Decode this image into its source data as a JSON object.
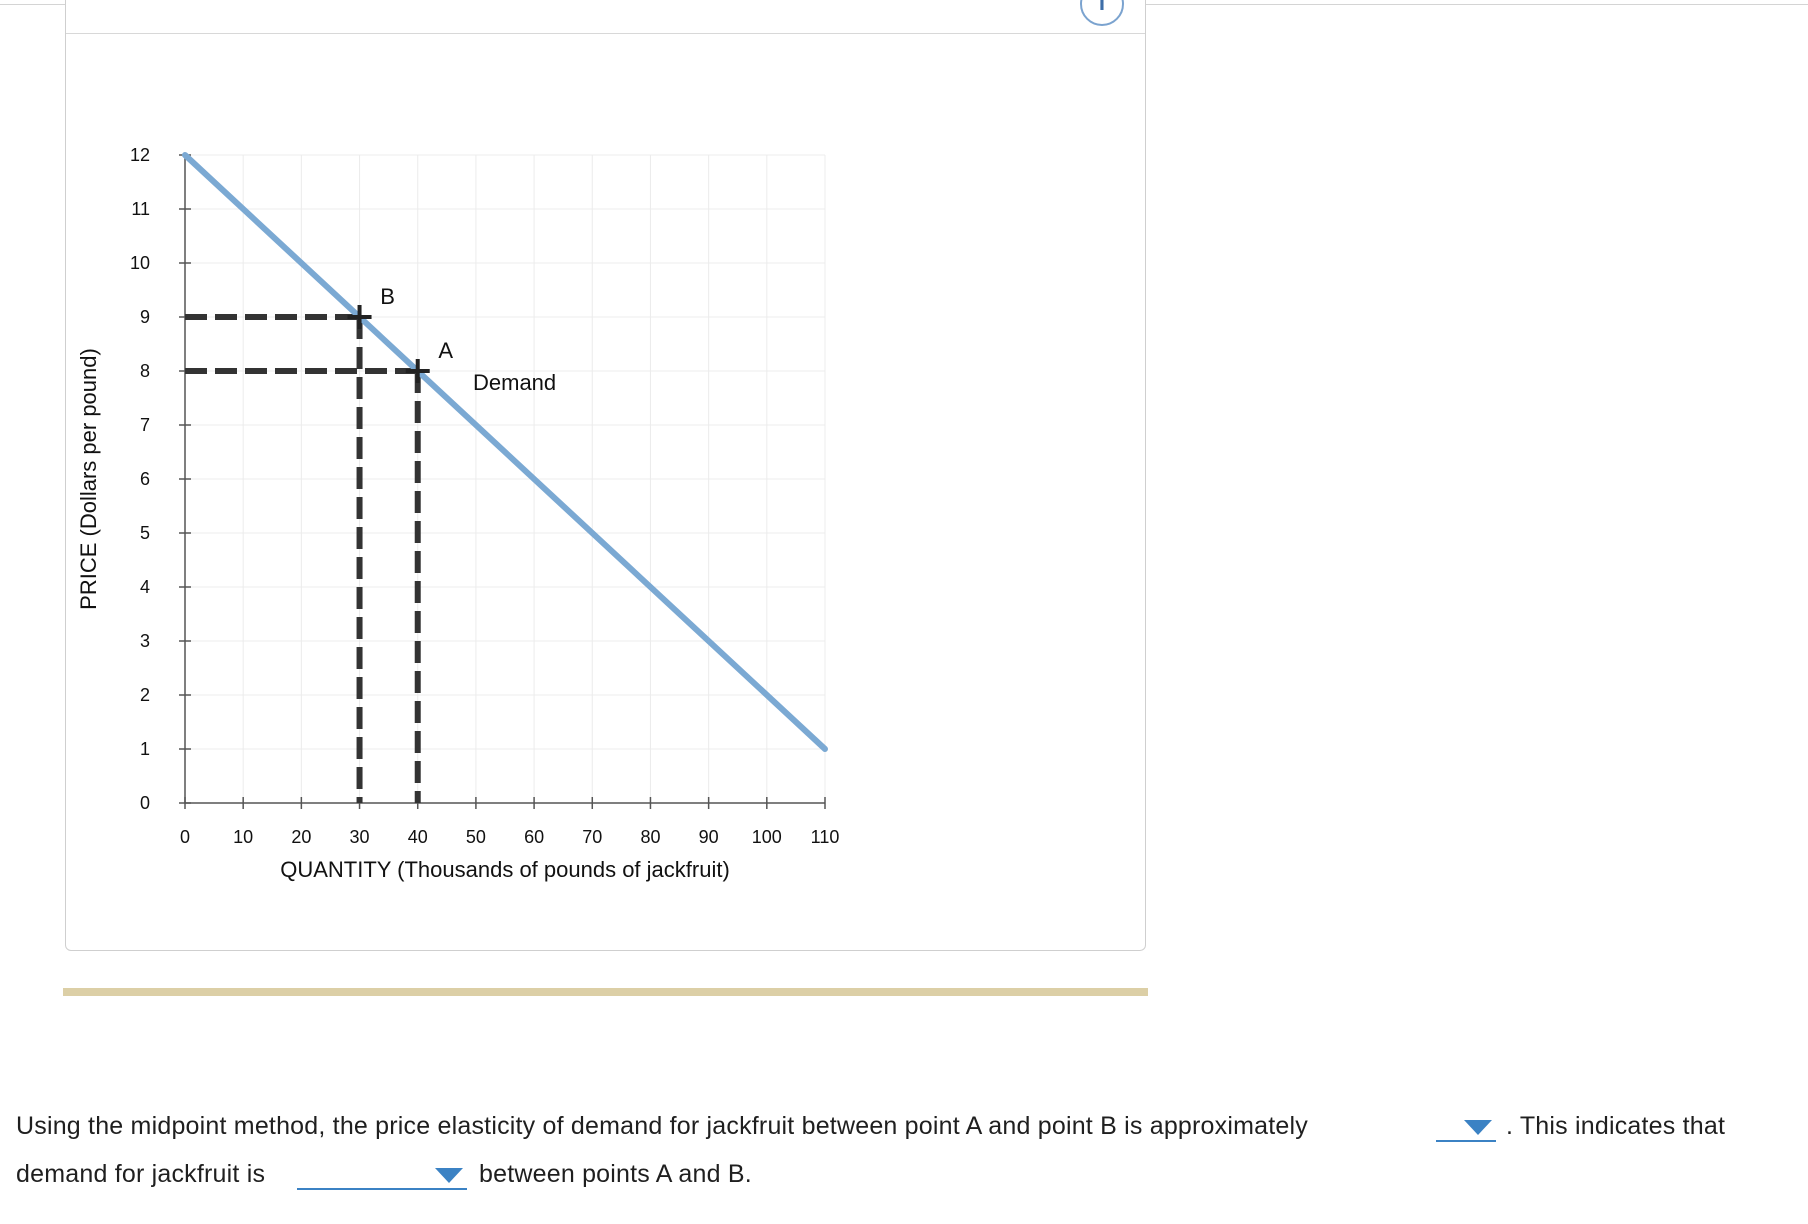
{
  "info_icon": "info-icon",
  "colors": {
    "demand_line": "#7ba9d3",
    "dashed_guides": "#333333",
    "dropdown_accent": "#3b82c4",
    "separator_bar": "#dccfa6"
  },
  "chart_data": {
    "type": "line",
    "xlabel": "QUANTITY (Thousands of pounds of jackfruit)",
    "ylabel": "PRICE (Dollars per pound)",
    "xlim": [
      0,
      110
    ],
    "ylim": [
      0,
      12
    ],
    "x_ticks": [
      0,
      10,
      20,
      30,
      40,
      50,
      60,
      70,
      80,
      90,
      100,
      110
    ],
    "y_ticks": [
      0,
      1,
      2,
      3,
      4,
      5,
      6,
      7,
      8,
      9,
      10,
      11,
      12
    ],
    "grid": true,
    "series": [
      {
        "name": "Demand",
        "x": [
          0,
          110
        ],
        "y": [
          12,
          1
        ],
        "color": "#7ba9d3"
      }
    ],
    "points": [
      {
        "label": "B",
        "x": 30,
        "y": 9
      },
      {
        "label": "A",
        "x": 40,
        "y": 8
      }
    ],
    "guide_lines": "dashed lines from points A and B to both axes"
  },
  "question": {
    "line1_before": "Using the midpoint method, the price elasticity of demand for jackfruit between point A and point B is approximately",
    "line1_after": ". This indicates that",
    "line2_before": "demand for jackfruit is",
    "line2_after": "between points A and B.",
    "elasticity_dropdown_value": "",
    "demand_type_dropdown_value": ""
  }
}
